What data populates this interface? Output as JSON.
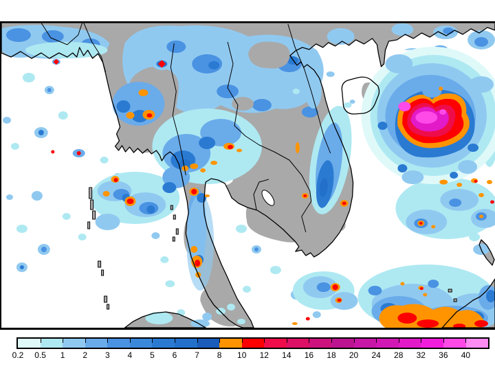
{
  "figure": {
    "kind": "precipitation-map"
  },
  "map": {
    "background": "#ffffff",
    "land_color": "#a9a9a9",
    "coastline_color": "#000000",
    "frame_color": "#000000"
  },
  "legend": {
    "labels": [
      "0.2",
      "0.5",
      "1",
      "2",
      "3",
      "4",
      "5",
      "6",
      "7",
      "8",
      "10",
      "12",
      "14",
      "16",
      "18",
      "20",
      "24",
      "28",
      "32",
      "36",
      "40"
    ],
    "colors": [
      "#dff9f9",
      "#aee9f2",
      "#90c9f0",
      "#6aabea",
      "#4a92e2",
      "#3a88da",
      "#2a7ad2",
      "#2270ca",
      "#1a5cba",
      "#ff9400",
      "#fd0002",
      "#ee0d4a",
      "#dc1064",
      "#cc127c",
      "#bc1490",
      "#c816a6",
      "#d218b4",
      "#e21ac8",
      "#f21cdc",
      "#ff4ae8",
      "#ff8cf2"
    ]
  },
  "chart_data": {
    "type": "heatmap",
    "scale_values": [
      0.2,
      0.5,
      1,
      2,
      3,
      4,
      5,
      6,
      7,
      8,
      10,
      12,
      14,
      16,
      18,
      20,
      24,
      28,
      32,
      36,
      40
    ],
    "scale_colors": [
      "#dff9f9",
      "#aee9f2",
      "#90c9f0",
      "#6aabea",
      "#4a92e2",
      "#3a88da",
      "#2a7ad2",
      "#2270ca",
      "#1a5cba",
      "#ff9400",
      "#fd0002",
      "#ee0d4a",
      "#dc1064",
      "#cc127c",
      "#bc1490",
      "#c816a6",
      "#d218b4",
      "#e21ac8",
      "#f21cdc",
      "#ff4ae8",
      "#ff8cf2"
    ],
    "legend_position": "bottom"
  }
}
